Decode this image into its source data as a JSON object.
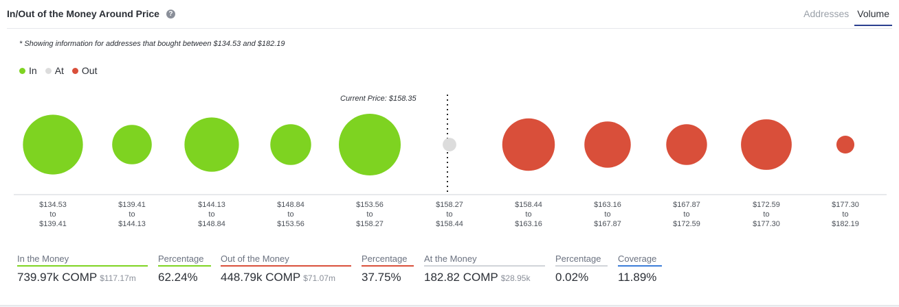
{
  "header": {
    "title": "In/Out of the Money Around Price",
    "help_icon": "?",
    "tabs": [
      {
        "label": "Addresses",
        "active": false
      },
      {
        "label": "Volume",
        "active": true
      }
    ]
  },
  "note": "* Showing information for addresses that bought between $134.53 and $182.19",
  "legend": [
    {
      "label": "In",
      "color": "#7ed321"
    },
    {
      "label": "At",
      "color": "#dcdcdc"
    },
    {
      "label": "Out",
      "color": "#d94f3a"
    }
  ],
  "current_price_label": "Current Price: $158.35",
  "chart_data": {
    "type": "scatter",
    "colors": {
      "in": "#7ed321",
      "at": "#dcdcdc",
      "out": "#d94f3a"
    },
    "buckets": [
      {
        "from": "$134.53",
        "to": "$139.41",
        "status": "in",
        "relative_size": 0.97
      },
      {
        "from": "$139.41",
        "to": "$144.13",
        "status": "in",
        "relative_size": 0.64
      },
      {
        "from": "$144.13",
        "to": "$148.84",
        "status": "in",
        "relative_size": 0.88
      },
      {
        "from": "$148.84",
        "to": "$153.56",
        "status": "in",
        "relative_size": 0.66
      },
      {
        "from": "$153.56",
        "to": "$158.27",
        "status": "in",
        "relative_size": 1.0
      },
      {
        "from": "$158.27",
        "to": "$158.44",
        "status": "at",
        "relative_size": 0.22
      },
      {
        "from": "$158.44",
        "to": "$163.16",
        "status": "out",
        "relative_size": 0.85
      },
      {
        "from": "$163.16",
        "to": "$167.87",
        "status": "out",
        "relative_size": 0.75
      },
      {
        "from": "$167.87",
        "to": "$172.59",
        "status": "out",
        "relative_size": 0.66
      },
      {
        "from": "$172.59",
        "to": "$177.30",
        "status": "out",
        "relative_size": 0.82
      },
      {
        "from": "$177.30",
        "to": "$182.19",
        "status": "out",
        "relative_size": 0.29
      }
    ],
    "to_word": "to"
  },
  "summary": [
    {
      "label": "In the Money",
      "value": "739.97k COMP",
      "sub": "$117.17m",
      "color": "#7ed321"
    },
    {
      "label": "Percentage",
      "value": "62.24%",
      "sub": "",
      "color": "#7ed321"
    },
    {
      "label": "Out of the Money",
      "value": "448.79k COMP",
      "sub": "$71.07m",
      "color": "#d94f3a"
    },
    {
      "label": "Percentage",
      "value": "37.75%",
      "sub": "",
      "color": "#d94f3a"
    },
    {
      "label": "At the Money",
      "value": "182.82 COMP",
      "sub": "$28.95k",
      "color": "#d0d3d8"
    },
    {
      "label": "Percentage",
      "value": "0.02%",
      "sub": "",
      "color": "#d0d3d8"
    },
    {
      "label": "Coverage",
      "value": "11.89%",
      "sub": "",
      "color": "#3b7dd8"
    }
  ]
}
